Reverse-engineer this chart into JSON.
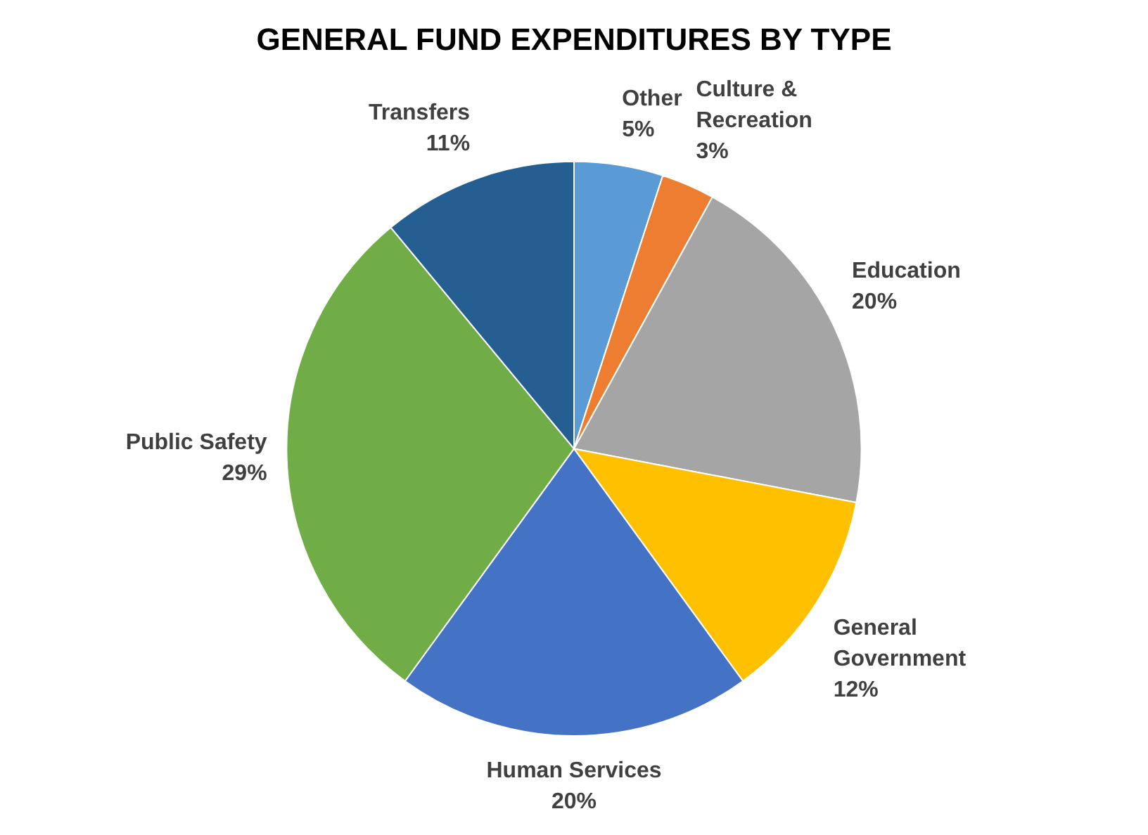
{
  "chart_data": {
    "type": "pie",
    "title": "GENERAL FUND EXPENDITURES BY TYPE",
    "categories": [
      "Other",
      "Culture & Recreation",
      "Education",
      "General Government",
      "Human Services",
      "Public Safety",
      "Transfers"
    ],
    "values": [
      5,
      3,
      20,
      12,
      20,
      29,
      11
    ],
    "colors": [
      "#5b9bd5",
      "#ed7d31",
      "#a5a5a5",
      "#ffc000",
      "#4472c4",
      "#70ad47",
      "#255e91"
    ],
    "value_labels": [
      "5%",
      "3%",
      "20%",
      "12%",
      "20%",
      "29%",
      "11%"
    ],
    "legend": false
  }
}
